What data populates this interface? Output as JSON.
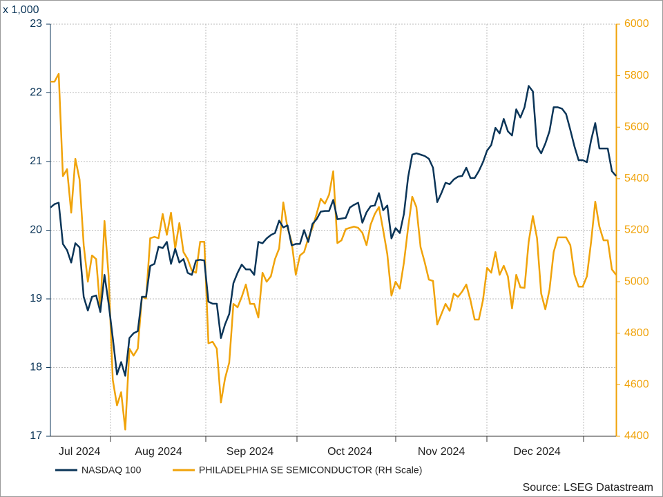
{
  "chart_data": {
    "type": "line",
    "ylabel": "x 1,000",
    "source": "Source: LSEG Datastream",
    "categories": [
      null,
      null,
      null,
      null,
      null,
      null,
      null,
      "Jul 2024",
      null,
      null,
      null,
      null,
      null,
      null,
      null,
      null,
      null,
      null,
      null,
      null,
      null,
      null,
      null,
      null,
      null,
      null,
      "Aug 2024",
      null,
      null,
      null,
      null,
      null,
      null,
      null,
      null,
      null,
      null,
      null,
      null,
      null,
      null,
      null,
      null,
      null,
      null,
      null,
      null,
      null,
      "Sep 2024",
      null,
      null,
      null,
      null,
      null,
      null,
      null,
      null,
      null,
      null,
      null,
      null,
      null,
      null,
      null,
      null,
      null,
      null,
      null,
      null,
      null,
      null,
      null,
      "Oct 2024",
      null,
      null,
      null,
      null,
      null,
      null,
      null,
      null,
      null,
      null,
      null,
      null,
      null,
      null,
      null,
      null,
      null,
      null,
      null,
      null,
      null,
      "Nov 2024",
      null,
      null,
      null,
      null,
      null,
      null,
      null,
      null,
      null,
      null,
      null,
      null,
      null,
      null,
      null,
      null,
      null,
      null,
      null,
      null,
      null,
      null,
      "Dec 2024",
      null,
      null,
      null,
      null,
      null,
      null,
      null,
      null,
      null,
      null,
      null,
      null,
      null,
      null,
      null,
      null,
      null,
      null,
      null
    ],
    "series": [
      {
        "name": "NASDAQ 100",
        "color": "#0b3558",
        "values": [
          20.33,
          20.38,
          20.4,
          19.8,
          19.71,
          19.53,
          19.81,
          19.75,
          19.03,
          18.83,
          19.03,
          19.05,
          18.81,
          19.35,
          18.93,
          18.43,
          17.9,
          18.08,
          17.88,
          18.43,
          18.5,
          18.53,
          19.03,
          19.03,
          19.48,
          19.51,
          19.76,
          19.74,
          19.83,
          19.51,
          19.73,
          19.53,
          19.58,
          19.38,
          19.35,
          19.56,
          19.57,
          19.56,
          18.96,
          18.93,
          18.93,
          18.43,
          18.63,
          18.78,
          19.23,
          19.38,
          19.5,
          19.43,
          19.43,
          19.35,
          19.83,
          19.81,
          19.88,
          19.93,
          19.96,
          20.14,
          20.04,
          20.07,
          19.78,
          19.8,
          19.8,
          20.0,
          19.83,
          20.09,
          20.16,
          20.27,
          20.28,
          20.28,
          20.44,
          20.16,
          20.17,
          20.18,
          20.33,
          20.37,
          20.4,
          20.11,
          20.26,
          20.35,
          20.36,
          20.54,
          20.29,
          20.36,
          19.88,
          20.03,
          19.96,
          20.24,
          20.77,
          21.1,
          21.12,
          21.1,
          21.08,
          21.04,
          20.91,
          20.41,
          20.54,
          20.69,
          20.67,
          20.74,
          20.78,
          20.79,
          20.91,
          20.76,
          20.76,
          20.86,
          20.99,
          21.16,
          21.24,
          21.49,
          21.41,
          21.62,
          21.44,
          21.38,
          21.76,
          21.64,
          21.79,
          22.1,
          22.02,
          21.22,
          21.12,
          21.26,
          21.44,
          21.79,
          21.79,
          21.77,
          21.69,
          21.46,
          21.22,
          21.02,
          21.02,
          20.99,
          21.31,
          21.56,
          21.19,
          21.19,
          21.19,
          20.86,
          20.79
        ]
      },
      {
        "name": "PHILADELPHIA SE SEMICONDUCTOR (RH Scale)",
        "color": "#f0a30a",
        "axis": "y2",
        "values": [
          5777,
          5777,
          5807,
          5410,
          5437,
          5268,
          5477,
          5397,
          5142,
          5000,
          5102,
          5088,
          4887,
          5236,
          5021,
          4619,
          4520,
          4571,
          4426,
          4740,
          4713,
          4740,
          4941,
          4935,
          5169,
          5174,
          5169,
          5263,
          5182,
          5268,
          5129,
          5228,
          5115,
          5088,
          5043,
          5035,
          5155,
          5155,
          4761,
          4767,
          4740,
          4531,
          4625,
          4686,
          4914,
          4901,
          4941,
          4989,
          4914,
          4914,
          4861,
          5035,
          5000,
          5021,
          5088,
          5129,
          5308,
          5209,
          5155,
          5027,
          5102,
          5115,
          5169,
          5209,
          5263,
          5322,
          5303,
          5338,
          5429,
          5150,
          5161,
          5204,
          5209,
          5214,
          5209,
          5190,
          5142,
          5222,
          5263,
          5290,
          5201,
          5107,
          4946,
          5000,
          4973,
          5075,
          5209,
          5330,
          5290,
          5134,
          5075,
          5008,
          5003,
          4834,
          4874,
          4914,
          4887,
          4954,
          4941,
          4962,
          4989,
          4928,
          4853,
          4853,
          4928,
          5054,
          5035,
          5115,
          5027,
          5062,
          5021,
          4896,
          5027,
          4978,
          4976,
          5155,
          5255,
          5169,
          4954,
          4893,
          4968,
          5115,
          5172,
          5172,
          5172,
          5142,
          5027,
          4981,
          4981,
          5021,
          5155,
          5311,
          5214,
          5161,
          5161,
          5048,
          5027
        ]
      }
    ],
    "ylim": [
      17,
      23
    ],
    "yticks": [
      17,
      18,
      19,
      20,
      21,
      22,
      23
    ],
    "y2lim": [
      4400,
      6000
    ],
    "y2ticks": [
      4400,
      4600,
      4800,
      5000,
      5200,
      5400,
      5600,
      5800,
      6000
    ],
    "grid": true,
    "legend": "bottom"
  }
}
